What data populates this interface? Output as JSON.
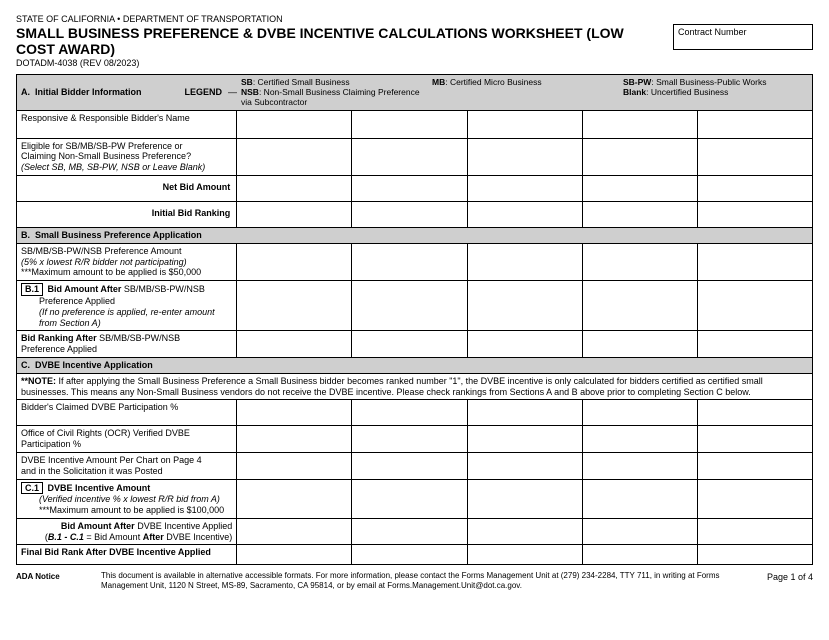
{
  "header": {
    "agency": "STATE OF CALIFORNIA • DEPARTMENT OF TRANSPORTATION",
    "title": "SMALL BUSINESS PREFERENCE & DVBE INCENTIVE CALCULATIONS WORKSHEET (LOW COST AWARD)",
    "form_no": "DOTADM-4038 (REV 08/2023)",
    "contract_label": "Contract Number",
    "contract_value": ""
  },
  "sectionA": {
    "letter": "A.",
    "title": "Initial Bidder Information",
    "legend_label": "LEGEND",
    "legend": {
      "sb": "SB",
      "sb_txt": ": Certified Small Business",
      "mb": "MB",
      "mb_txt": ": Certified Micro Business",
      "sbpw": "SB-PW",
      "sbpw_txt": ": Small Business-Public Works",
      "nsb": "NSB",
      "nsb_txt": ": Non-Small Business Claiming Preference via Subcontractor",
      "blank": "Blank",
      "blank_txt": ": Uncertified Business"
    },
    "row_bidder": "Responsive & Responsible Bidder's Name",
    "row_elig1": "Eligible for SB/MB/SB-PW Preference or",
    "row_elig2": "Claiming Non-Small Business Preference?",
    "row_elig3": "(Select SB, MB, SB-PW, NSB or Leave Blank)",
    "row_netbid": "Net Bid Amount",
    "row_initrank": "Initial Bid Ranking"
  },
  "sectionB": {
    "letter": "B.",
    "title": "Small Business Preference Application",
    "row_pref1": "SB/MB/SB-PW/NSB Preference Amount",
    "row_pref2": "(5% x lowest R/R bidder not participating)",
    "row_pref3": "***Maximum amount to be applied is $50,000",
    "b1_box": "B.1",
    "row_b1a": "Bid Amount After",
    "row_b1a2": " SB/MB/SB-PW/NSB",
    "row_b1b": "Preference Applied",
    "row_b1c": "(If no preference is applied, re-enter amount from Section A)",
    "row_rankafter1": "Bid Ranking After",
    "row_rankafter2": " SB/MB/SB-PW/NSB",
    "row_rankafter3": "Preference Applied"
  },
  "sectionC": {
    "letter": "C.",
    "title": "DVBE Incentive Application",
    "note_prefix": "**NOTE:",
    "note": " If after applying the Small Business Preference a Small Business bidder becomes ranked number \"1\", the DVBE incentive is only calculated for bidders certified as certified small businesses. This means any Non-Small Business vendors do not receive the DVBE incentive. Please check rankings from Sections A and B above prior to completing Section C below.",
    "row_claimed": "Bidder's Claimed DVBE Participation %",
    "row_ocr1": "Office of Civil Rights (OCR) Verified DVBE",
    "row_ocr2": "Participation %",
    "row_incamt1": "DVBE Incentive Amount Per Chart on Page 4",
    "row_incamt2": "and in the Solicitation it was Posted",
    "c1_box": "C.1",
    "row_c1a": "DVBE Incentive Amount",
    "row_c1b": "(Verified incentive % x lowest R/R bid from A)",
    "row_c1c": "***Maximum amount to be applied is $100,000",
    "row_bidafter1": "Bid Amount After",
    "row_bidafter2": " DVBE Incentive Applied",
    "row_bidafter3a": "(",
    "row_bidafter3b": "B.1 - C.1",
    "row_bidafter3c": " = Bid Amount ",
    "row_bidafter3d": "After",
    "row_bidafter3e": " DVBE Incentive)",
    "row_finalrank": "Final Bid Rank After DVBE Incentive Applied"
  },
  "footer": {
    "ada_label": "ADA Notice",
    "ada_text": "This document is available in alternative accessible formats. For more information, please contact the Forms Management Unit at (279) 234-2284, TTY 711, in writing at Forms Management Unit, 1120 N Street, MS-89, Sacramento, CA 95814, or by email at Forms.Management.Unit@dot.ca.gov.",
    "page": "Page 1 of 4"
  }
}
